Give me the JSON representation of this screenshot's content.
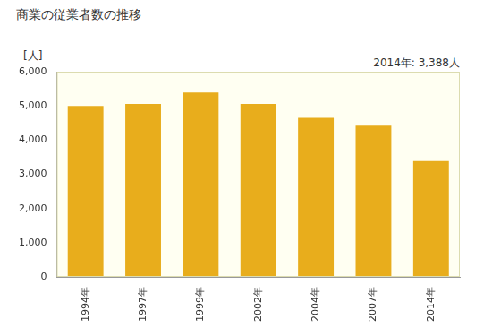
{
  "chart_data": {
    "type": "bar",
    "title": "商業の従業者数の推移",
    "y_label": "[人]",
    "annotations": [
      "2014年: 3,388人"
    ],
    "categories": [
      "1994年",
      "1997年",
      "1999年",
      "2002年",
      "2004年",
      "2007年",
      "2014年"
    ],
    "values": [
      5000,
      5060,
      5390,
      5060,
      4650,
      4420,
      3388
    ],
    "color": "#e8ad1c",
    "ylim": [
      0,
      6000
    ],
    "yticks": [
      0,
      {
        "value": 1000,
        "label": "1,000"
      },
      {
        "value": 2000,
        "label": "2,000"
      },
      {
        "value": 3000,
        "label": "3,000"
      },
      {
        "value": 4000,
        "label": "4,000"
      },
      {
        "value": 5000,
        "label": "5,000"
      },
      {
        "value": 6000,
        "label": "6,000"
      }
    ],
    "grid": false
  }
}
